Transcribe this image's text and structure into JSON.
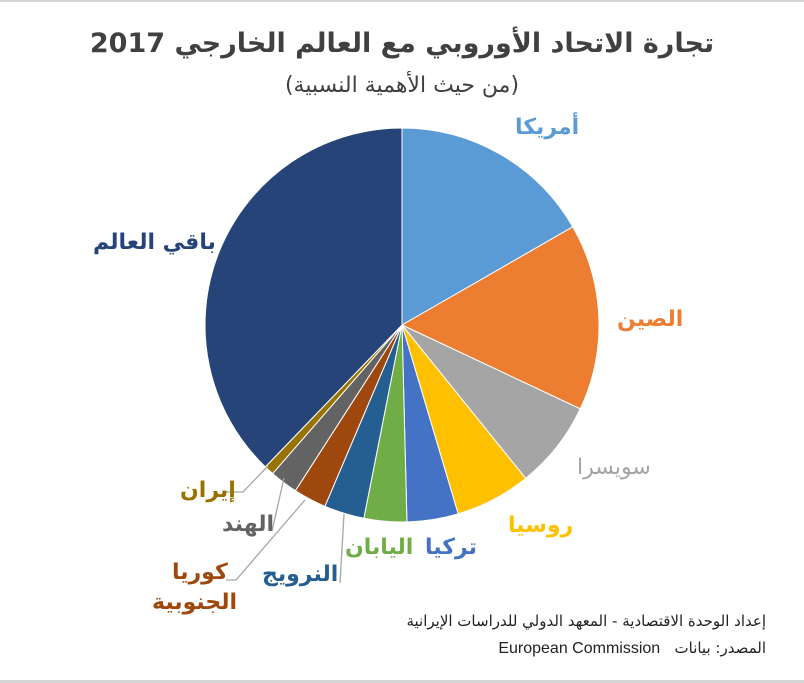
{
  "title": "تجارة الاتحاد الأوروبي مع العالم الخارجي 2017",
  "subtitle": "(من حيث الأهمية النسبية)",
  "footer": {
    "line1": "إعداد الوحدة الاقتصادية - المعهد الدولي للدراسات الإيرانية",
    "line2_prefix": "المصدر: بيانات",
    "line2_source": "European Commission"
  },
  "chart_data": {
    "type": "pie",
    "title": "تجارة الاتحاد الأوروبي مع العالم الخارجي 2017",
    "subtitle": "(من حيث الأهمية النسبية)",
    "start_angle_deg": 0,
    "direction": "clockwise",
    "categories": [
      "أمريكا",
      "الصين",
      "سويسرا",
      "روسيا",
      "تركيا",
      "اليابان",
      "النرويج",
      "كوريا الجنوبية",
      "الهند",
      "إيران",
      "باقي العالم"
    ],
    "values": [
      16.7,
      15.3,
      7.2,
      6.2,
      4.2,
      3.5,
      3.3,
      2.7,
      2.3,
      0.8,
      37.8
    ],
    "value_unit": "% (estimated from slice angles)",
    "colors": [
      "#5B9BD5",
      "#ED7D31",
      "#A5A5A5",
      "#FFC000",
      "#4472C4",
      "#70AD47",
      "#255E91",
      "#9E480E",
      "#636363",
      "#997300",
      "#264478"
    ],
    "labels_shown": true,
    "legend": "none (direct labels)"
  },
  "labels": [
    {
      "text": "أمريكا",
      "color": "#5B9BD5"
    },
    {
      "text": "الصين",
      "color": "#ED7D31"
    },
    {
      "text": "سويسرا",
      "color": "#A5A5A5"
    },
    {
      "text": "روسيا",
      "color": "#FFC000"
    },
    {
      "text": "تركيا",
      "color": "#4472C4"
    },
    {
      "text": "اليابان",
      "color": "#70AD47"
    },
    {
      "text": "النرويج",
      "color": "#255E91"
    },
    {
      "text": "كوريا",
      "color": "#9E480E"
    },
    {
      "text": "الجنوبية",
      "color": "#9E480E"
    },
    {
      "text": "الهند",
      "color": "#636363"
    },
    {
      "text": "إيران",
      "color": "#997300"
    },
    {
      "text": "باقي العالم",
      "color": "#264478"
    }
  ]
}
